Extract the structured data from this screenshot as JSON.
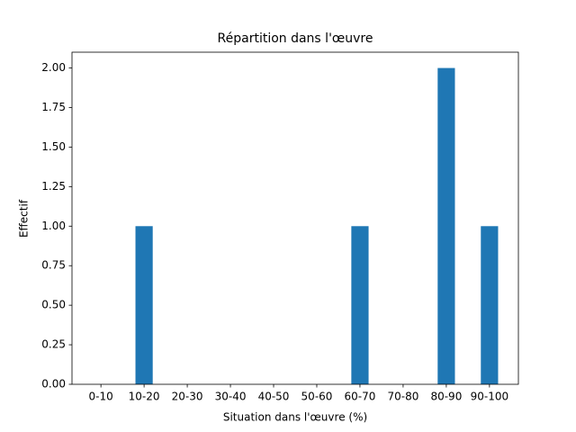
{
  "chart_data": {
    "type": "bar",
    "title": "Répartition dans l'œuvre",
    "x_label": "Situation dans l'œuvre (%)",
    "y_label": "Effectif",
    "categories": [
      "0-10",
      "10-20",
      "20-30",
      "30-40",
      "40-50",
      "50-60",
      "60-70",
      "70-80",
      "80-90",
      "90-100"
    ],
    "values": [
      0,
      1,
      0,
      0,
      0,
      0,
      1,
      0,
      2,
      1
    ],
    "color": "#1f77b4",
    "ylim": [
      0,
      2.1
    ],
    "yticks": [
      {
        "value": 0,
        "label": "0.00"
      },
      {
        "value": 0.25,
        "label": "0.25"
      },
      {
        "value": 0.5,
        "label": "0.50"
      },
      {
        "value": 0.75,
        "label": "0.75"
      },
      {
        "value": 1,
        "label": "1.00"
      },
      {
        "value": 1.25,
        "label": "1.25"
      },
      {
        "value": 1.5,
        "label": "1.50"
      },
      {
        "value": 1.75,
        "label": "1.75"
      },
      {
        "value": 2,
        "label": "2.00"
      }
    ],
    "grid": false
  }
}
